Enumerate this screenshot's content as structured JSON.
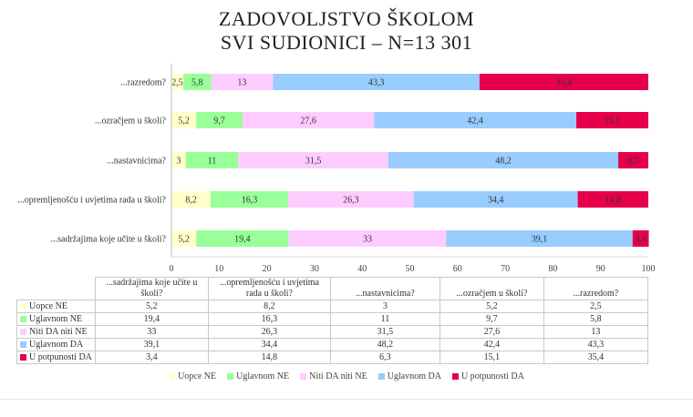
{
  "chart_data": {
    "type": "bar",
    "stacked": true,
    "orientation": "horizontal",
    "title": "ZADOVOLJSTVO ŠKOLOM",
    "subtitle": "SVI SUDIONICI – N=13 301",
    "categories": [
      "...razredom?",
      "...ozračjem u školi?",
      "...nastavnicima?",
      "...opremljenošću i uvjetima rada u školi?",
      "...sadržajima koje učite u školi?"
    ],
    "series": [
      {
        "name": "Uopce NE",
        "values": [
          2.5,
          5.2,
          3,
          8.2,
          5.2
        ],
        "labels": [
          "2,5",
          "5,2",
          "3",
          "8,2",
          "5,2"
        ],
        "color": "#FFFFCC"
      },
      {
        "name": "Uglavnom NE",
        "values": [
          5.8,
          9.7,
          11,
          16.3,
          19.4
        ],
        "labels": [
          "5,8",
          "9,7",
          "11",
          "16,3",
          "19,4"
        ],
        "color": "#99FF99"
      },
      {
        "name": "Niti DA niti NE",
        "values": [
          13,
          27.6,
          31.5,
          26.3,
          33
        ],
        "labels": [
          "13",
          "27,6",
          "31,5",
          "26,3",
          "33"
        ],
        "color": "#FFCCFF"
      },
      {
        "name": "Uglavnom DA",
        "values": [
          43.3,
          42.4,
          48.2,
          34.4,
          39.1
        ],
        "labels": [
          "43,3",
          "42,4",
          "48,2",
          "34,4",
          "39,1"
        ],
        "color": "#99CCFF"
      },
      {
        "name": "U potpunosti DA",
        "values": [
          35.4,
          15.1,
          6.3,
          14.8,
          3.4
        ],
        "labels": [
          "35,4",
          "15,1",
          "6,3",
          "14,8",
          "3,4"
        ],
        "color": "#E6004C"
      }
    ],
    "xlim": [
      0,
      100
    ],
    "xticks": [
      "0",
      "10",
      "20",
      "30",
      "40",
      "50",
      "60",
      "70",
      "80",
      "90",
      "100"
    ],
    "grid": false,
    "legend": "bottom"
  },
  "table": {
    "columns": [
      "...sadržajima koje učite u školi?",
      "...opremljenošću i uvjetima rada u školi?",
      "...nastavnicima?",
      "...ozračjem u školi?",
      "...razredom?"
    ],
    "rows": [
      {
        "name": "Uopce NE",
        "color": "#FFFFCC",
        "values": [
          "5,2",
          "8,2",
          "3",
          "5,2",
          "2,5"
        ]
      },
      {
        "name": "Uglavnom NE",
        "color": "#99FF99",
        "values": [
          "19,4",
          "16,3",
          "11",
          "9,7",
          "5,8"
        ]
      },
      {
        "name": "Niti DA niti NE",
        "color": "#FFCCFF",
        "values": [
          "33",
          "26,3",
          "31,5",
          "27,6",
          "13"
        ]
      },
      {
        "name": "Uglavnom DA",
        "color": "#99CCFF",
        "values": [
          "39,1",
          "34,4",
          "48,2",
          "42,4",
          "43,3"
        ]
      },
      {
        "name": "U potpunosti DA",
        "color": "#E6004C",
        "values": [
          "3,4",
          "14,8",
          "6,3",
          "15,1",
          "35,4"
        ]
      }
    ]
  }
}
